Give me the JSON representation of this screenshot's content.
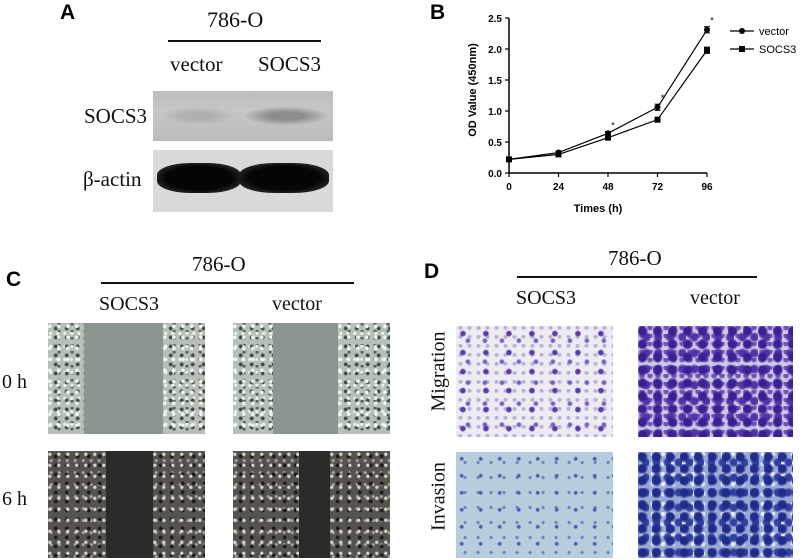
{
  "panels": {
    "a": "A",
    "b": "B",
    "c": "C",
    "d": "D"
  },
  "panel_a": {
    "cell_line": "786-O",
    "lane_labels": [
      "vector",
      "SOCS3"
    ],
    "row_labels": [
      "SOCS3",
      "β-actin"
    ]
  },
  "panel_c": {
    "cell_line": "786-O",
    "column_labels": [
      "SOCS3",
      "vector"
    ],
    "row_labels": [
      "0 h",
      "6 h"
    ]
  },
  "panel_d": {
    "cell_line": "786-O",
    "column_labels": [
      "SOCS3",
      "vector"
    ],
    "row_labels": [
      "Migration",
      "Invasion"
    ]
  },
  "chart_data": {
    "type": "line",
    "xlabel": "Times (h)",
    "ylabel": "OD Value (450nm)",
    "x": [
      0,
      24,
      48,
      72,
      96
    ],
    "xlim": [
      0,
      96
    ],
    "ylim": [
      0.0,
      2.5
    ],
    "xticks": [
      "0",
      "24",
      "48",
      "72",
      "96"
    ],
    "yticks": [
      "0.0",
      "0.5",
      "1.0",
      "1.5",
      "2.0",
      "2.5"
    ],
    "series": [
      {
        "name": "vector",
        "marker": "circle",
        "values": [
          0.22,
          0.33,
          0.64,
          1.06,
          2.31
        ],
        "errors": [
          0.02,
          0.02,
          0.03,
          0.05,
          0.05
        ]
      },
      {
        "name": "SOCS3",
        "marker": "square",
        "values": [
          0.22,
          0.3,
          0.57,
          0.86,
          1.98
        ],
        "errors": [
          0.02,
          0.02,
          0.02,
          0.03,
          0.05
        ]
      }
    ],
    "annotations": [
      {
        "x": 48,
        "text": "*"
      },
      {
        "x": 72,
        "text": "*"
      },
      {
        "x": 96,
        "text": "*"
      }
    ],
    "legend": "top-right",
    "grid": false
  }
}
